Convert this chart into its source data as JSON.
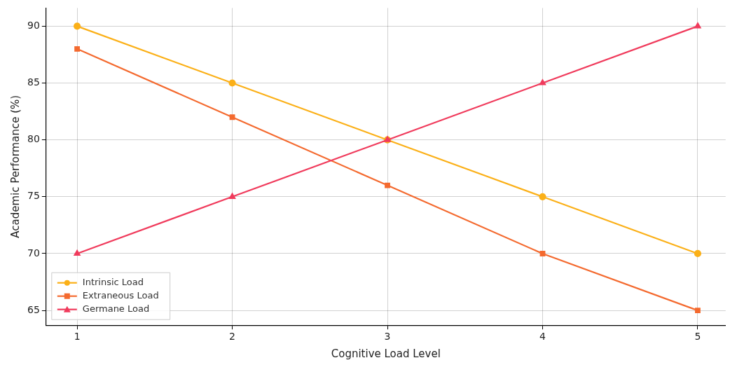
{
  "chart_data": {
    "type": "line",
    "xlabel": "Cognitive Load Level",
    "ylabel": "Academic Performance (%)",
    "x": [
      1,
      2,
      3,
      4,
      5
    ],
    "series": [
      {
        "name": "Intrinsic Load",
        "color": "#fbb018",
        "marker": "circle",
        "values": [
          90,
          85,
          80,
          75,
          70
        ]
      },
      {
        "name": "Extraneous Load",
        "color": "#f46a2f",
        "marker": "square",
        "values": [
          88,
          82,
          76,
          70,
          65
        ]
      },
      {
        "name": "Germane Load",
        "color": "#f03b5c",
        "marker": "triangle",
        "values": [
          70,
          75,
          80,
          85,
          90
        ]
      }
    ],
    "xlim": [
      0.8,
      5.18
    ],
    "xticks": [
      1,
      2,
      3,
      4,
      5
    ],
    "ylim": [
      63.7,
      91.6
    ],
    "yticks": [
      65,
      70,
      75,
      80,
      85,
      90
    ],
    "grid": true,
    "legend": "bottom left",
    "line_style": "solid"
  }
}
